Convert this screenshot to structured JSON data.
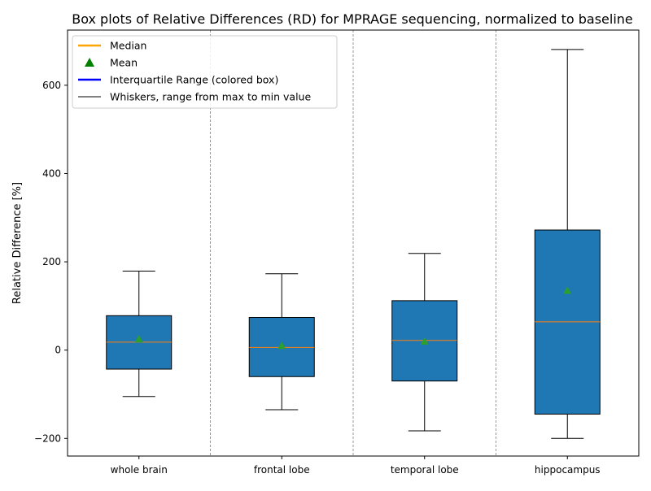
{
  "chart_data": {
    "type": "box",
    "title": "Box plots of Relative Differences (RD) for MPRAGE sequencing, normalized to baseline",
    "xlabel": "",
    "ylabel": "Relative Difference [%]",
    "ylim": [
      -240,
      725
    ],
    "yticks": [
      -200,
      0,
      200,
      400,
      600
    ],
    "categories": [
      "whole brain",
      "frontal lobe",
      "temporal lobe",
      "hippocampus"
    ],
    "boxes": [
      {
        "min": -105,
        "q1": -43,
        "median": 18,
        "q3": 78,
        "max": 179,
        "mean": 25
      },
      {
        "min": -135,
        "q1": -60,
        "median": 6,
        "q3": 74,
        "max": 173,
        "mean": 10
      },
      {
        "min": -183,
        "q1": -70,
        "median": 22,
        "q3": 112,
        "max": 219,
        "mean": 20
      },
      {
        "min": -200,
        "q1": -145,
        "median": 64,
        "q3": 272,
        "max": 681,
        "mean": 135
      }
    ],
    "legend": {
      "position": "top-left",
      "entries": [
        {
          "label": "Median",
          "marker": "line",
          "color": "#ffa500"
        },
        {
          "label": "Mean",
          "marker": "triangle",
          "color": "#008000"
        },
        {
          "label": "Interquartile Range (colored box)",
          "marker": "line",
          "color": "#0000ff"
        },
        {
          "label": "Whiskers, range from max to min value",
          "marker": "line",
          "color": "#000000"
        }
      ]
    },
    "separators": true,
    "grid": false,
    "colors": {
      "box_fill": "#1f77b4",
      "median": "#ff7f0e",
      "mean": "#2ca02c",
      "whisker": "#000000",
      "separator": "#808080"
    }
  }
}
